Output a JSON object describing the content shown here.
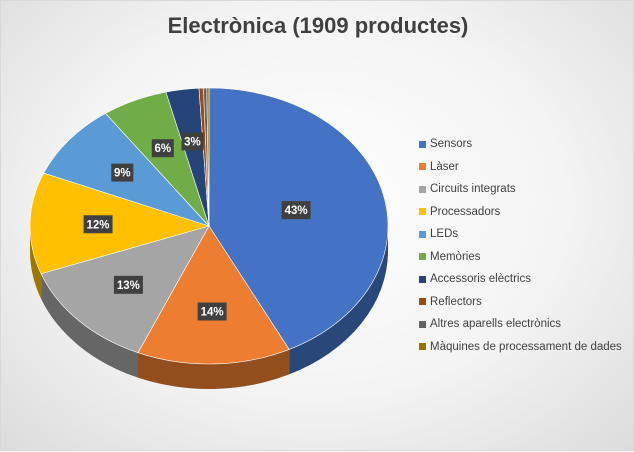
{
  "chart_data": {
    "type": "pie",
    "title": "Electrònica (1909 productes)",
    "legend_position": "right",
    "label_format": "percent",
    "slices": [
      {
        "label": "Sensors",
        "value": 43,
        "color": "#4472c4"
      },
      {
        "label": "Làser",
        "value": 14,
        "color": "#ed7d31"
      },
      {
        "label": "Circuits integrats",
        "value": 13,
        "color": "#a5a5a5"
      },
      {
        "label": "Processadors",
        "value": 12,
        "color": "#ffc000"
      },
      {
        "label": "LEDs",
        "value": 9,
        "color": "#5b9bd5"
      },
      {
        "label": "Memòries",
        "value": 6,
        "color": "#70ad47"
      },
      {
        "label": "Accessoris elèctrics",
        "value": 3,
        "color": "#264478"
      },
      {
        "label": "Reflectors",
        "value": 0.4,
        "color": "#9e480e"
      },
      {
        "label": "Altres aparells electrònics",
        "value": 0.3,
        "color": "#636363"
      },
      {
        "label": "Màquines de processament de dades",
        "value": 0.2,
        "color": "#997300"
      }
    ]
  }
}
